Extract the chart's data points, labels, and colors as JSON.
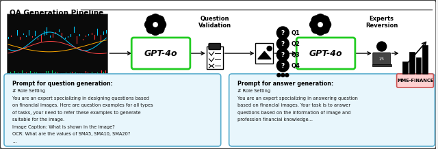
{
  "title": "QA Generation Pipeline",
  "figsize": [
    6.4,
    2.18
  ],
  "dpi": 100,
  "outer_bg": "#f0f0f0",
  "inner_bg": "white",
  "question_prompt": {
    "title": "Prompt for question generation:",
    "lines": [
      "# Role Setting",
      "You are an expert specializing in designing questions based",
      "on financial images. Here are question examples for all types",
      "of tasks, your need to refer these examples to generate",
      "suitable for the image.",
      "Image Caption: What is shown in the image?",
      "OCR: What are the values of SMA5, SMA10, SMA20?",
      "..."
    ]
  },
  "answer_prompt": {
    "title": "Prompt for answer generation:",
    "lines": [
      "# Role Setting",
      "You are an expert specializing in answering question",
      "based on financial images. Your task is to answer",
      "questions based on the information of image and",
      "profession financial knowledge..."
    ]
  }
}
